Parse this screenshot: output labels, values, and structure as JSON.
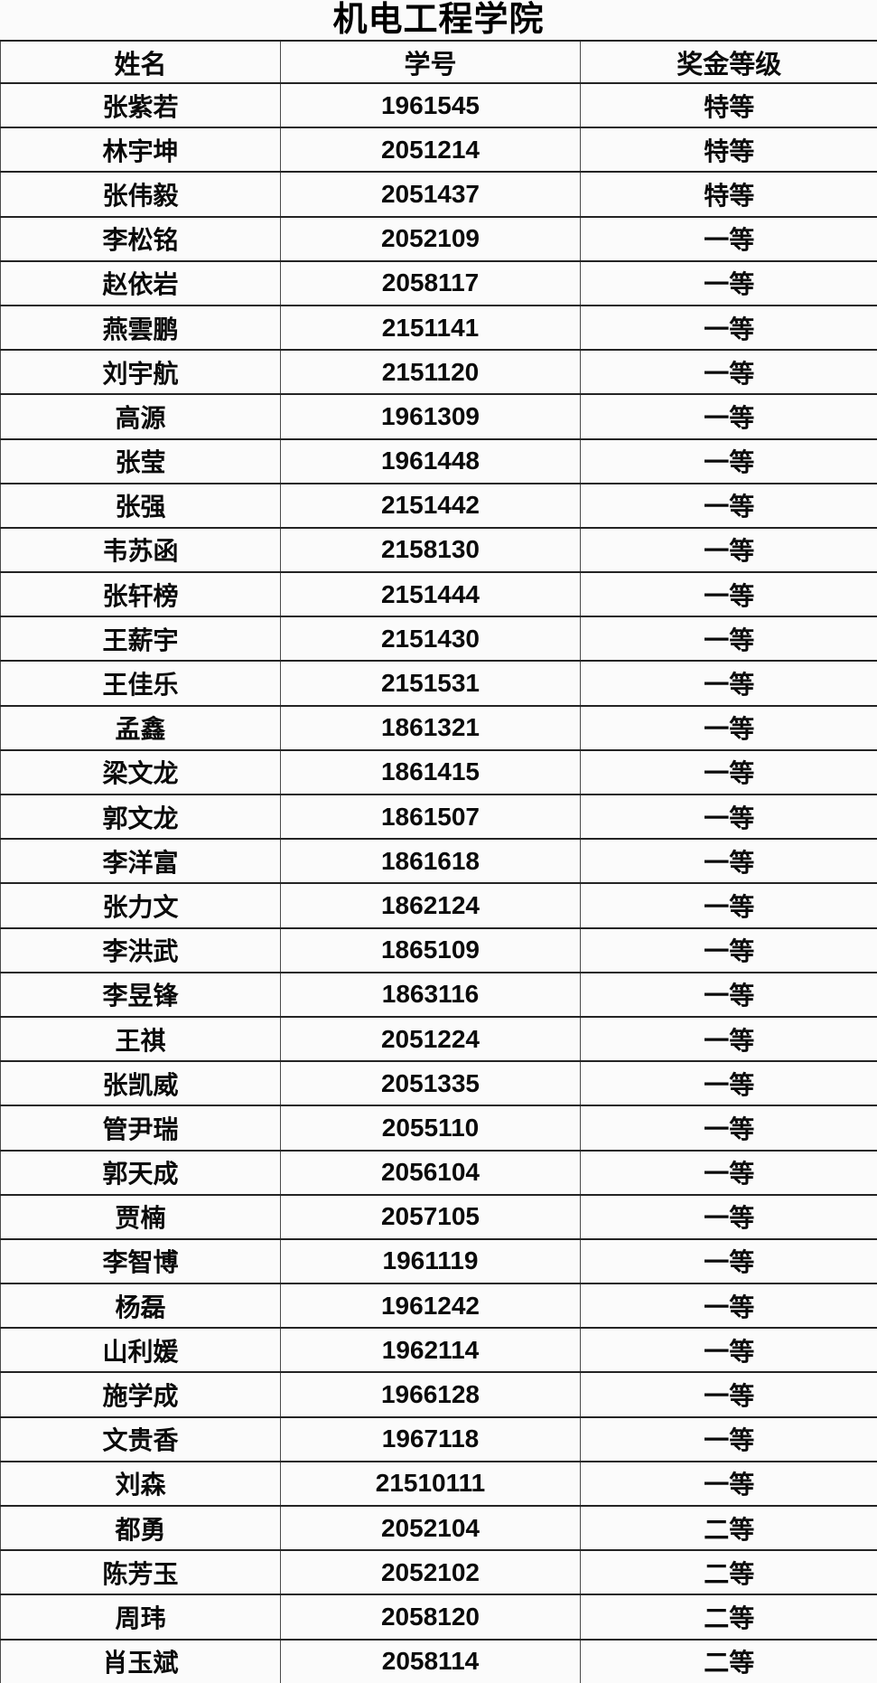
{
  "page": {
    "title": "机电工程学院"
  },
  "table": {
    "columns": [
      "姓名",
      "学号",
      "奖金等级"
    ],
    "rows": [
      {
        "name": "张紫若",
        "id": "1961545",
        "level": "特等"
      },
      {
        "name": "林宇坤",
        "id": "2051214",
        "level": "特等"
      },
      {
        "name": "张伟毅",
        "id": "2051437",
        "level": "特等"
      },
      {
        "name": "李松铭",
        "id": "2052109",
        "level": "一等"
      },
      {
        "name": "赵依岩",
        "id": "2058117",
        "level": "一等"
      },
      {
        "name": "燕雲鹏",
        "id": "2151141",
        "level": "一等"
      },
      {
        "name": "刘宇航",
        "id": "2151120",
        "level": "一等"
      },
      {
        "name": "高源",
        "id": "1961309",
        "level": "一等"
      },
      {
        "name": "张莹",
        "id": "1961448",
        "level": "一等"
      },
      {
        "name": "张强",
        "id": "2151442",
        "level": "一等"
      },
      {
        "name": "韦苏函",
        "id": "2158130",
        "level": "一等"
      },
      {
        "name": "张轩榜",
        "id": "2151444",
        "level": "一等"
      },
      {
        "name": "王薪宇",
        "id": "2151430",
        "level": "一等"
      },
      {
        "name": "王佳乐",
        "id": "2151531",
        "level": "一等"
      },
      {
        "name": "孟鑫",
        "id": "1861321",
        "level": "一等"
      },
      {
        "name": "梁文龙",
        "id": "1861415",
        "level": "一等"
      },
      {
        "name": "郭文龙",
        "id": "1861507",
        "level": "一等"
      },
      {
        "name": "李洋富",
        "id": "1861618",
        "level": "一等"
      },
      {
        "name": "张力文",
        "id": "1862124",
        "level": "一等"
      },
      {
        "name": "李洪武",
        "id": "1865109",
        "level": "一等"
      },
      {
        "name": "李昱锋",
        "id": "1863116",
        "level": "一等"
      },
      {
        "name": "王祺",
        "id": "2051224",
        "level": "一等"
      },
      {
        "name": "张凯威",
        "id": "2051335",
        "level": "一等"
      },
      {
        "name": "管尹瑞",
        "id": "2055110",
        "level": "一等"
      },
      {
        "name": "郭天成",
        "id": "2056104",
        "level": "一等"
      },
      {
        "name": "贾楠",
        "id": "2057105",
        "level": "一等"
      },
      {
        "name": "李智博",
        "id": "1961119",
        "level": "一等"
      },
      {
        "name": "杨磊",
        "id": "1961242",
        "level": "一等"
      },
      {
        "name": "山利媛",
        "id": "1962114",
        "level": "一等"
      },
      {
        "name": "施学成",
        "id": "1966128",
        "level": "一等"
      },
      {
        "name": "文贵香",
        "id": "1967118",
        "level": "一等"
      },
      {
        "name": "刘森",
        "id": "21510111",
        "level": "一等"
      },
      {
        "name": "都勇",
        "id": "2052104",
        "level": "二等"
      },
      {
        "name": "陈芳玉",
        "id": "2052102",
        "level": "二等"
      },
      {
        "name": "周玮",
        "id": "2058120",
        "level": "二等"
      },
      {
        "name": "肖玉斌",
        "id": "2058114",
        "level": "二等"
      }
    ]
  }
}
